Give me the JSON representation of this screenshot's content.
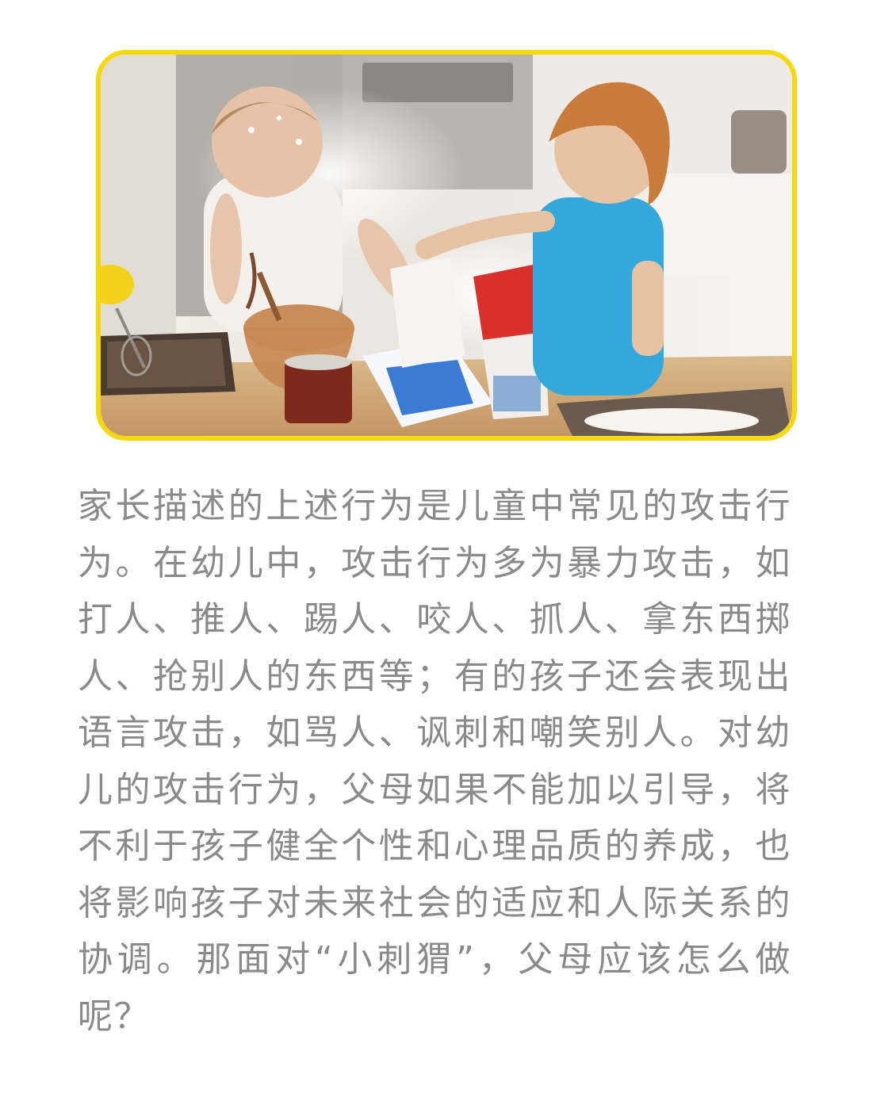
{
  "article": {
    "paragraph": "家长描述的上述行为是儿童中常见的攻击行为。在幼儿中，攻击行为多为暴力攻击，如打人、推人、踢人、咬人、抓人、拿东西掷人、抢别人的东西等；有的孩子还会表现出语言攻击，如骂人、讽刺和嘲笑别人。对幼儿的攻击行为，父母如果不能加以引导，将不利于孩子健全个性和心理品质的养成，也将影响孩子对未来社会的适应和人际关系的协调。那面对“小刺猬”，父母应该怎么做呢？"
  },
  "colors": {
    "frame_border": "#f5d90a",
    "body_text": "#8a8a8a",
    "background": "#ffffff"
  }
}
